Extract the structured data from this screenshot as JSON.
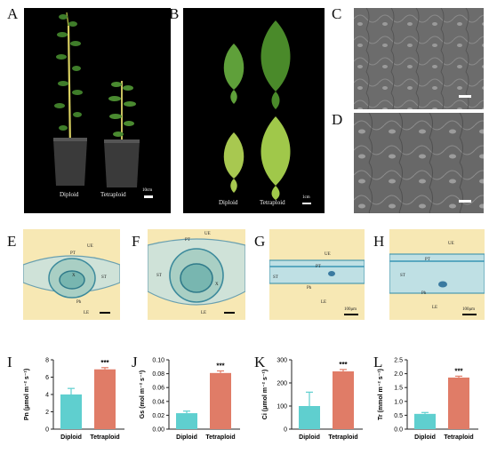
{
  "panel_labels": [
    "A",
    "B",
    "C",
    "D",
    "E",
    "F",
    "G",
    "H",
    "I",
    "J",
    "K",
    "L"
  ],
  "colors": {
    "diploid": "#5fcfcf",
    "tetraploid": "#e07c67",
    "section_bg": "#f7e8b4",
    "photo_black": "#000000",
    "sem_gray": "#6a6a6a"
  },
  "panel_a": {
    "labels": [
      "Diploid",
      "Tetraploid"
    ],
    "scale": "10cm"
  },
  "panel_b": {
    "labels": [
      "Diploid",
      "Tetraploid"
    ],
    "scale": "1cm"
  },
  "panel_e": {
    "labels": [
      "UE",
      "PT",
      "ST",
      "X",
      "LE",
      "Ph"
    ]
  },
  "panel_f": {
    "labels": [
      "UE",
      "PT",
      "ST",
      "X",
      "LE"
    ]
  },
  "panel_g": {
    "labels": [
      "UE",
      "PT",
      "ST",
      "Ph",
      "LE"
    ],
    "scale": "100μm"
  },
  "panel_h": {
    "labels": [
      "UE",
      "PT",
      "ST",
      "Ph",
      "LE"
    ],
    "scale": "100μm"
  },
  "chart_data": [
    {
      "type": "bar",
      "categories": [
        "Diploid",
        "Tetraploid"
      ],
      "values": [
        4.0,
        6.9
      ],
      "errors": [
        0.7,
        0.2
      ],
      "ylabel": "Pn (μmol m⁻² s⁻¹)",
      "ylim": [
        0,
        8
      ],
      "yticks": [
        "0",
        "2",
        "4",
        "6",
        "8"
      ],
      "significance": "***"
    },
    {
      "type": "bar",
      "categories": [
        "Diploid",
        "Tetraploid"
      ],
      "values": [
        0.023,
        0.081
      ],
      "errors": [
        0.003,
        0.003
      ],
      "ylabel": "Gs (mol m⁻² s⁻¹)",
      "ylim": [
        0,
        0.1
      ],
      "yticks": [
        "0.00",
        "0.02",
        "0.04",
        "0.06",
        "0.08",
        "0.10"
      ],
      "significance": "***"
    },
    {
      "type": "bar",
      "categories": [
        "Diploid",
        "Tetraploid"
      ],
      "values": [
        100,
        250
      ],
      "errors": [
        60,
        8
      ],
      "ylabel": "Ci (μmol m⁻² s⁻¹)",
      "ylim": [
        0,
        300
      ],
      "yticks": [
        "0",
        "100",
        "200",
        "300"
      ],
      "significance": "***"
    },
    {
      "type": "bar",
      "categories": [
        "Diploid",
        "Tetraploid"
      ],
      "values": [
        0.55,
        1.86
      ],
      "errors": [
        0.05,
        0.05
      ],
      "ylabel": "Tr (mmol m⁻² s⁻¹)",
      "ylim": [
        0,
        2.5
      ],
      "yticks": [
        "0.0",
        "0.5",
        "1.0",
        "1.5",
        "2.0",
        "2.5"
      ],
      "significance": "***"
    }
  ]
}
